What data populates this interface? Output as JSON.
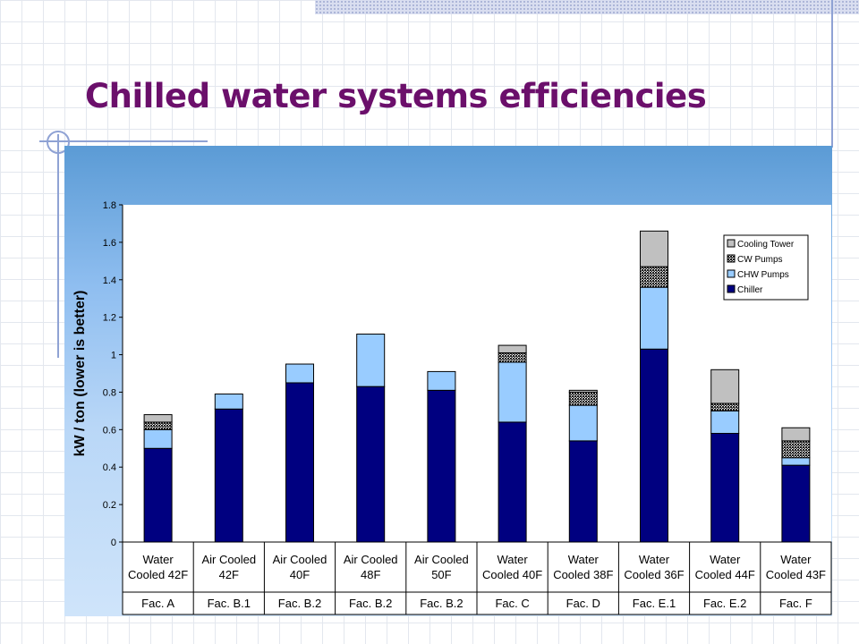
{
  "slide": {
    "title": "Chilled water systems efficiencies"
  },
  "colors": {
    "title": "#6b0f6b",
    "chiller": "#000080",
    "chw_pumps": "#99ccff",
    "cw_pumps": "#333333",
    "cooling_tower": "#c0c0c0"
  },
  "chart_data": {
    "type": "bar",
    "stacked": true,
    "ylabel": "kW / ton (lower is better)",
    "xlabel": "",
    "ylim": [
      0,
      1.8
    ],
    "yticks": [
      "0",
      "0.2",
      "0.4",
      "0.6",
      "0.8",
      "1",
      "1.2",
      "1.4",
      "1.6",
      "1.8"
    ],
    "grid": false,
    "legend_position": "top-right",
    "categories": [
      {
        "line1": "Water",
        "line2": "Cooled 42F",
        "facility": "Fac. A"
      },
      {
        "line1": "Air Cooled",
        "line2": "42F",
        "facility": "Fac. B.1"
      },
      {
        "line1": "Air Cooled",
        "line2": "40F",
        "facility": "Fac. B.2"
      },
      {
        "line1": "Air Cooled",
        "line2": "48F",
        "facility": "Fac. B.2"
      },
      {
        "line1": "Air Cooled",
        "line2": "50F",
        "facility": "Fac. B.2"
      },
      {
        "line1": "Water",
        "line2": "Cooled 40F",
        "facility": "Fac. C"
      },
      {
        "line1": "Water",
        "line2": "Cooled 38F",
        "facility": "Fac. D"
      },
      {
        "line1": "Water",
        "line2": "Cooled 36F",
        "facility": "Fac. E.1"
      },
      {
        "line1": "Water",
        "line2": "Cooled 44F",
        "facility": "Fac. E.2"
      },
      {
        "line1": "Water",
        "line2": "Cooled 43F",
        "facility": "Fac. F"
      }
    ],
    "series": [
      {
        "name": "Chiller",
        "color": "#000080",
        "pattern": "solid",
        "values": [
          0.5,
          0.71,
          0.85,
          0.83,
          0.81,
          0.64,
          0.54,
          1.03,
          0.58,
          0.41
        ]
      },
      {
        "name": "CHW Pumps",
        "color": "#99ccff",
        "pattern": "solid",
        "values": [
          0.1,
          0.08,
          0.1,
          0.28,
          0.1,
          0.32,
          0.19,
          0.33,
          0.12,
          0.04
        ]
      },
      {
        "name": "CW Pumps",
        "color": "#333333",
        "pattern": "dotted",
        "values": [
          0.04,
          0.0,
          0.0,
          0.0,
          0.0,
          0.05,
          0.07,
          0.11,
          0.04,
          0.09
        ]
      },
      {
        "name": "Cooling Tower",
        "color": "#c0c0c0",
        "pattern": "solid",
        "values": [
          0.04,
          0.0,
          0.0,
          0.0,
          0.0,
          0.04,
          0.01,
          0.19,
          0.18,
          0.07
        ]
      }
    ],
    "legend_order": [
      "Cooling Tower",
      "CW Pumps",
      "CHW Pumps",
      "Chiller"
    ]
  }
}
